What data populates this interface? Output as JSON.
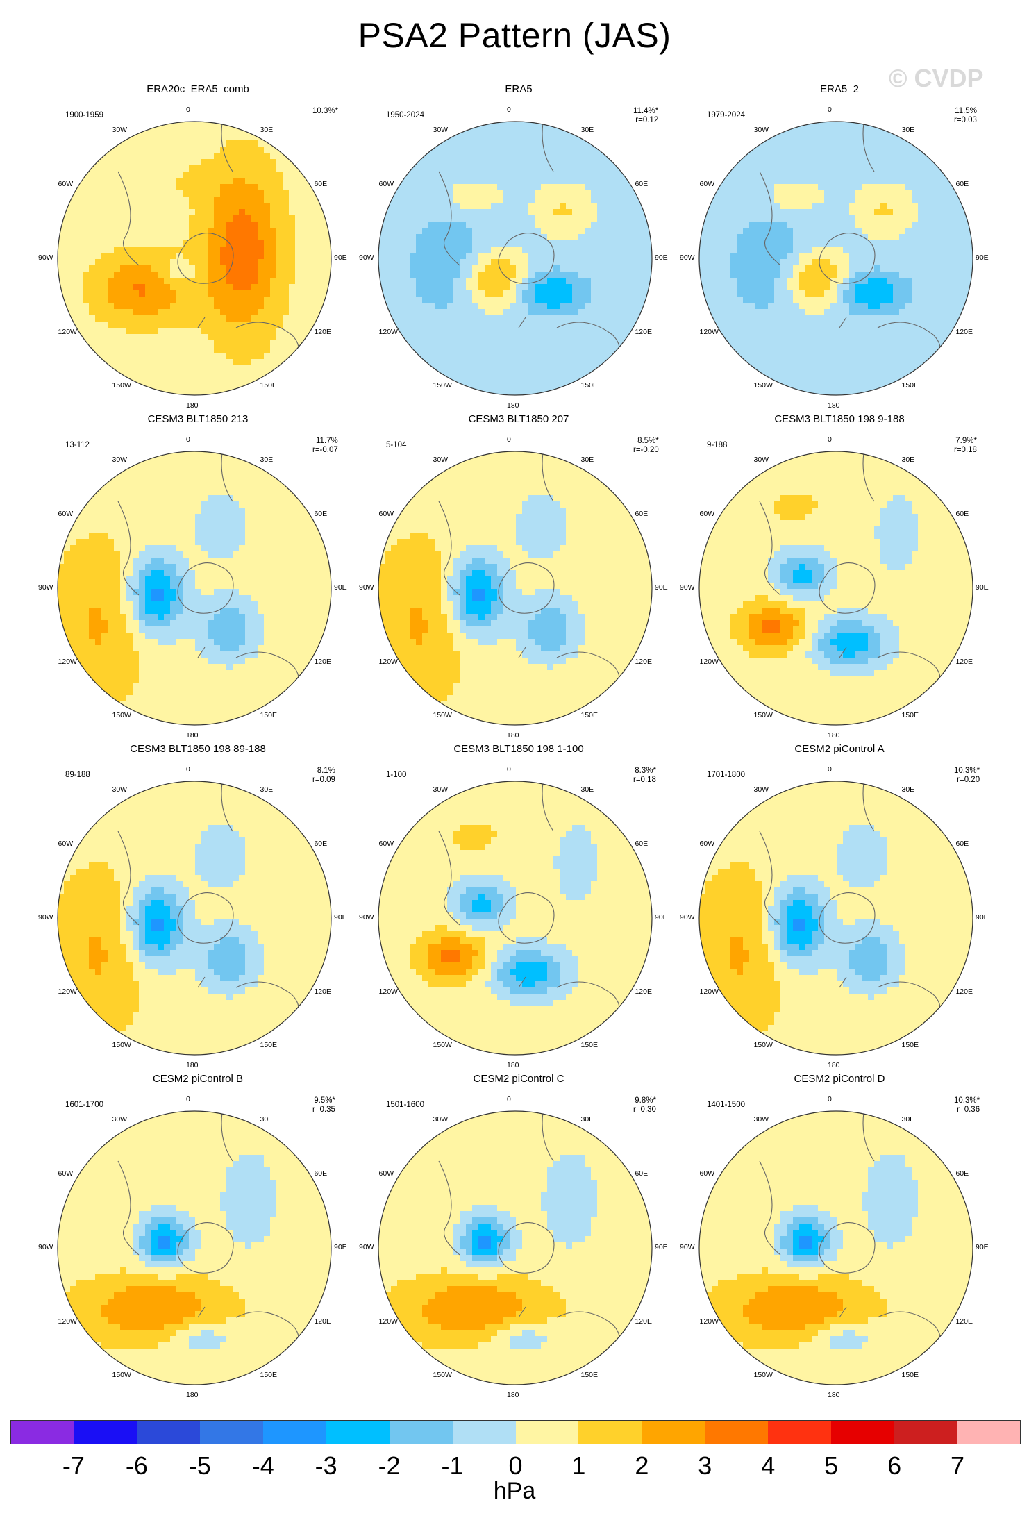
{
  "title": "PSA2 Pattern (JAS)",
  "watermark": "© CVDP",
  "units": "hPa",
  "colorbar": {
    "labels": [
      "-7",
      "-6",
      "-5",
      "-4",
      "-3",
      "-2",
      "-1",
      "0",
      "1",
      "2",
      "3",
      "4",
      "5",
      "6",
      "7"
    ],
    "colors": [
      "#8a2be2",
      "#1a0ff5",
      "#2b49d9",
      "#3377e6",
      "#1e96ff",
      "#00bfff",
      "#72c6f0",
      "#b0dff5",
      "#fff5a3",
      "#ffd12b",
      "#ffa500",
      "#ff7800",
      "#ff3210",
      "#e60000",
      "#cd1f1f",
      "#ffb3b3"
    ]
  },
  "longitude_labels": [
    "0",
    "30E",
    "60E",
    "90E",
    "120E",
    "150E",
    "180",
    "150W",
    "120W",
    "90W",
    "60W",
    "30W"
  ],
  "panels": [
    {
      "title": "ERA20c_ERA5_comb",
      "period": "1900-1959",
      "stat": "10.3%*",
      "kind": "A"
    },
    {
      "title": "ERA5",
      "period": "1950-2024",
      "stat": "11.4%*\nr=0.12",
      "kind": "B"
    },
    {
      "title": "ERA5_2",
      "period": "1979-2024",
      "stat": "11.5%\nr=0.03",
      "kind": "B"
    },
    {
      "title": "CESM3 BLT1850 213",
      "period": "13-112",
      "stat": "11.7%\nr=-0.07",
      "kind": "C"
    },
    {
      "title": "CESM3 BLT1850 207",
      "period": "5-104",
      "stat": "8.5%*\nr=-0.20",
      "kind": "C"
    },
    {
      "title": "CESM3 BLT1850 198 9-188",
      "period": "9-188",
      "stat": "7.9%*\nr=0.18",
      "kind": "D"
    },
    {
      "title": "CESM3 BLT1850 198 89-188",
      "period": "89-188",
      "stat": "8.1%\nr=0.09",
      "kind": "C"
    },
    {
      "title": "CESM3 BLT1850 198 1-100",
      "period": "1-100",
      "stat": "8.3%*\nr=0.18",
      "kind": "D"
    },
    {
      "title": "CESM2 piControl A",
      "period": "1701-1800",
      "stat": "10.3%*\nr=0.20",
      "kind": "C"
    },
    {
      "title": "CESM2 piControl B",
      "period": "1601-1700",
      "stat": "9.5%*\nr=0.35",
      "kind": "E"
    },
    {
      "title": "CESM2 piControl C",
      "period": "1501-1600",
      "stat": "9.8%*\nr=0.30",
      "kind": "E"
    },
    {
      "title": "CESM2 piControl D",
      "period": "1401-1500",
      "stat": "10.3%*\nr=0.36",
      "kind": "E"
    }
  ]
}
